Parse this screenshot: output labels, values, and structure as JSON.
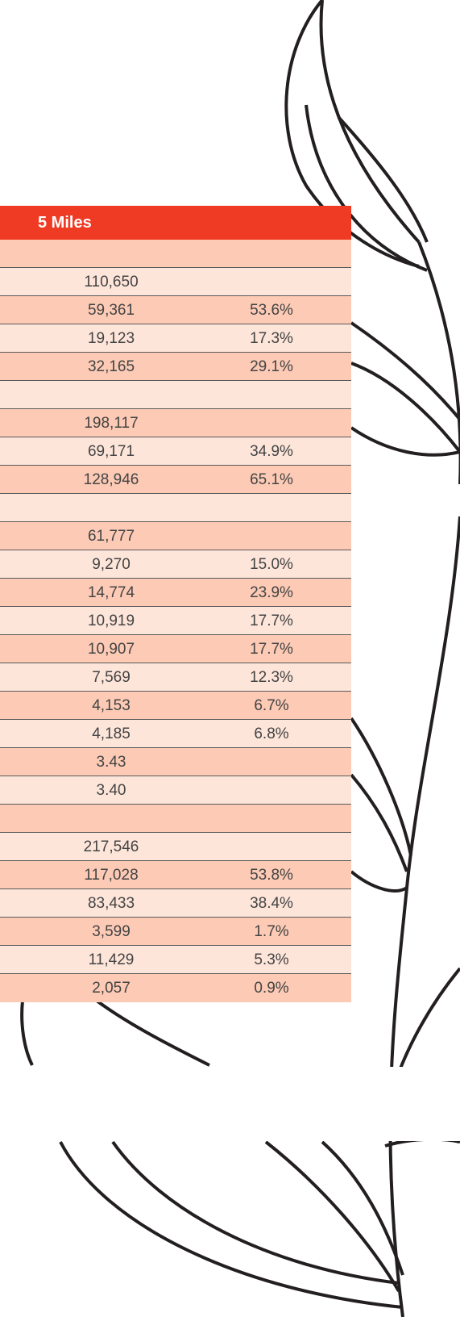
{
  "table": {
    "header": "5 Miles",
    "rows": [
      [],
      [
        "110,650"
      ],
      [
        "59,361",
        "53.6%"
      ],
      [
        "19,123",
        "17.3%"
      ],
      [
        "32,165",
        "29.1%"
      ],
      [],
      [
        "198,117"
      ],
      [
        "69,171",
        "34.9%"
      ],
      [
        "128,946",
        "65.1%"
      ],
      [],
      [
        "61,777"
      ],
      [
        "9,270",
        "15.0%"
      ],
      [
        "14,774",
        "23.9%"
      ],
      [
        "10,919",
        "17.7%"
      ],
      [
        "10,907",
        "17.7%"
      ],
      [
        "7,569",
        "12.3%"
      ],
      [
        "4,153",
        "6.7%"
      ],
      [
        "4,185",
        "6.8%"
      ],
      [
        "3.43"
      ],
      [
        "3.40"
      ],
      [],
      [
        "217,546"
      ],
      [
        "117,028",
        "53.8%"
      ],
      [
        "83,433",
        "38.4%"
      ],
      [
        "3,599",
        "1.7%"
      ],
      [
        "11,429",
        "5.3%"
      ],
      [
        "2,057",
        "0.9%"
      ]
    ]
  }
}
